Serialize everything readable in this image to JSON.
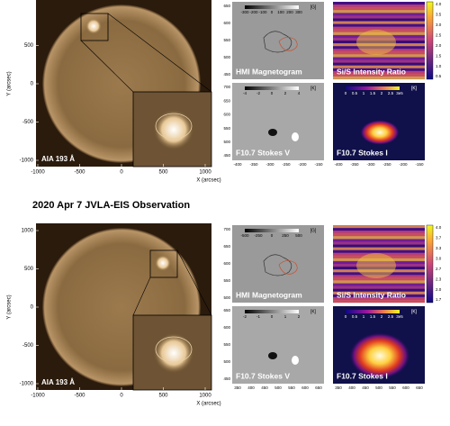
{
  "title": "2020 Apr 7 JVLA-EIS Observation",
  "figures": [
    {
      "aia": {
        "label": "AIA 193 Å",
        "x_label": "X (arcsec)",
        "y_label": "Y (arcsec)",
        "xticks": [
          -1000,
          -500,
          0,
          500,
          1000
        ],
        "yticks": [
          500,
          0,
          -500,
          -1000
        ]
      },
      "panels": [
        {
          "label": "HMI Magnetogram",
          "yticks": [
            650,
            600,
            550,
            500,
            450
          ],
          "cbar_ticks": [
            -300,
            -200,
            -100,
            0,
            100,
            200,
            300
          ],
          "cbar_unit": "[G]"
        },
        {
          "label": "Si/S Intensity Ratio",
          "cbar_ticks": [
            "4.0",
            "3.5",
            "3.0",
            "2.5",
            "2.0",
            "1.5",
            "1.0",
            "0.5"
          ]
        },
        {
          "label": "F10.7 Stokes V",
          "yticks": [
            700,
            650,
            600,
            550,
            500,
            450
          ],
          "xticks": [
            -400,
            -350,
            -300,
            -250,
            -200,
            -150
          ],
          "cbar_ticks": [
            -4,
            -2,
            0,
            2,
            4
          ],
          "cbar_unit": "[K]"
        },
        {
          "label": "F10.7 Stokes I",
          "xticks": [
            -400,
            -350,
            -300,
            -250,
            -200,
            -150
          ],
          "cbar_ticks": [
            0,
            0.5,
            1,
            1.5,
            2,
            2.5,
            "3e5"
          ],
          "cbar_unit": "[K]"
        }
      ]
    },
    {
      "aia": {
        "label": "AIA 193 Å",
        "x_label": "X (arcsec)",
        "y_label": "Y (arcsec)",
        "xticks": [
          -1000,
          -500,
          0,
          500,
          1000
        ],
        "yticks": [
          1000,
          500,
          0,
          -500,
          -1000
        ]
      },
      "panels": [
        {
          "label": "HMI Magnetogram",
          "yticks": [
            700,
            650,
            600,
            550,
            500
          ],
          "cbar_ticks": [
            -500,
            -250,
            0,
            250,
            500
          ],
          "cbar_unit": "[G]"
        },
        {
          "label": "Si/S Intensity Ratio",
          "cbar_ticks": [
            "4.0",
            "3.7",
            "3.3",
            "3.0",
            "2.7",
            "2.3",
            "2.0",
            "1.7"
          ]
        },
        {
          "label": "F10.7 Stokes V",
          "yticks": [
            650,
            600,
            550,
            500,
            450
          ],
          "xticks": [
            350,
            400,
            450,
            500,
            550,
            600,
            650
          ],
          "cbar_ticks": [
            -2,
            -1,
            0,
            1,
            2
          ],
          "cbar_unit": "[K]"
        },
        {
          "label": "F10.7 Stokes I",
          "xticks": [
            350,
            400,
            450,
            500,
            550,
            600,
            650
          ],
          "cbar_ticks": [
            0,
            0.5,
            1,
            1.5,
            2,
            2.5,
            "3e5"
          ],
          "cbar_unit": "[K]"
        }
      ]
    }
  ]
}
